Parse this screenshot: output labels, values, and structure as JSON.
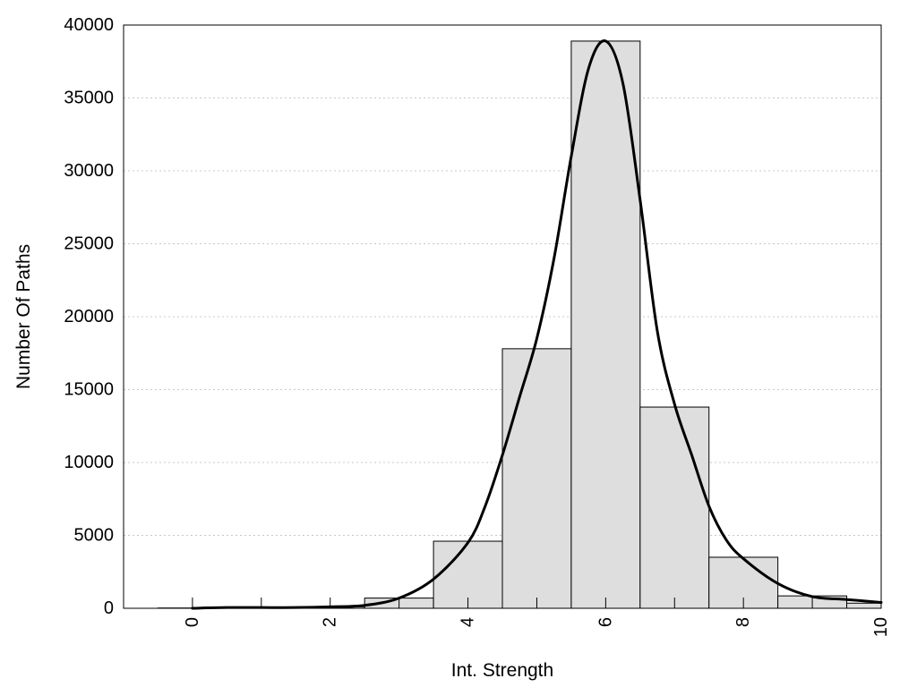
{
  "chart_data": {
    "type": "bar",
    "xlabel": "Int. Strength",
    "ylabel": "Number Of Paths",
    "xlim": [
      -1,
      10
    ],
    "ylim": [
      0,
      40000
    ],
    "x_ticks": [
      0,
      2,
      4,
      6,
      8,
      10
    ],
    "x_tick_labels": [
      "0",
      "2",
      "4",
      "6",
      "8",
      "10"
    ],
    "y_ticks": [
      0,
      5000,
      10000,
      15000,
      20000,
      25000,
      30000,
      35000,
      40000
    ],
    "y_tick_labels": [
      "0",
      "5000",
      "10000",
      "15000",
      "20000",
      "25000",
      "30000",
      "35000",
      "40000"
    ],
    "grid": "horizontal dotted",
    "bar_color": "#dedede",
    "bars": [
      {
        "x": 0,
        "value": 20
      },
      {
        "x": 1,
        "value": 40
      },
      {
        "x": 2,
        "value": 100
      },
      {
        "x": 3,
        "value": 700
      },
      {
        "x": 4,
        "value": 4600
      },
      {
        "x": 5,
        "value": 17800
      },
      {
        "x": 6,
        "value": 38900
      },
      {
        "x": 7,
        "value": 13800
      },
      {
        "x": 8,
        "value": 3500
      },
      {
        "x": 9,
        "value": 850
      },
      {
        "x": 10,
        "value": 350
      }
    ],
    "fit_curve": {
      "type": "line",
      "x": [
        0,
        0.5,
        1,
        1.5,
        2,
        2.5,
        3,
        3.5,
        4,
        4.25,
        4.5,
        4.75,
        5,
        5.25,
        5.5,
        5.75,
        6,
        6.25,
        6.5,
        6.75,
        7,
        7.25,
        7.5,
        7.75,
        8,
        8.5,
        9,
        9.5,
        10
      ],
      "y": [
        0,
        50,
        50,
        50,
        100,
        200,
        700,
        2000,
        4500,
        7000,
        10500,
        14500,
        18500,
        24000,
        31000,
        37000,
        38900,
        36000,
        28000,
        19000,
        14000,
        10500,
        7000,
        4700,
        3400,
        1700,
        800,
        600,
        400
      ]
    }
  }
}
